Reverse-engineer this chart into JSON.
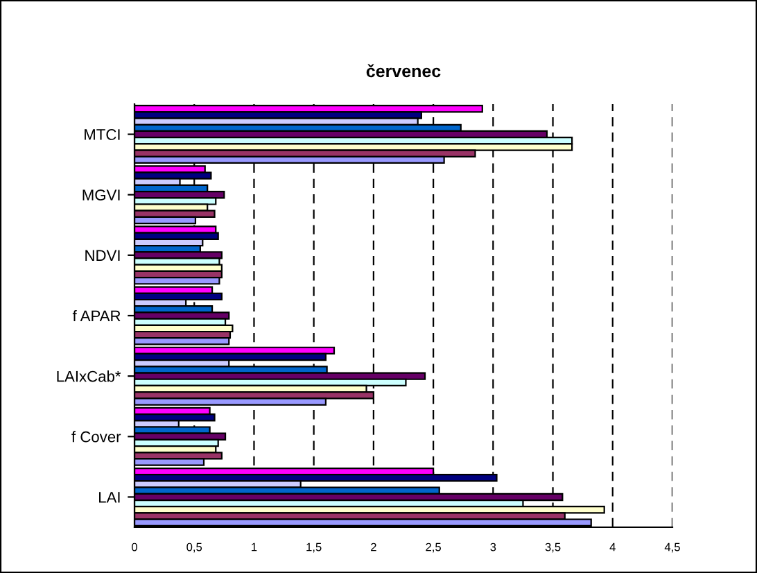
{
  "chart_data": {
    "type": "bar",
    "orientation": "horizontal",
    "title": "červenec",
    "categories": [
      "MTCI",
      "MGVI",
      "NDVI",
      "f APAR",
      "LAIxCab*",
      "f Cover",
      "LAI"
    ],
    "series": [
      {
        "color": "#ff00ff",
        "values": [
          2.91,
          0.59,
          0.68,
          0.65,
          1.67,
          0.63,
          2.5
        ]
      },
      {
        "color": "#000080",
        "values": [
          2.4,
          0.64,
          0.7,
          0.73,
          1.6,
          0.67,
          3.03
        ]
      },
      {
        "color": "#ccccff",
        "values": [
          2.37,
          0.38,
          0.57,
          0.43,
          0.79,
          0.37,
          1.39
        ]
      },
      {
        "color": "#0066cc",
        "values": [
          2.73,
          0.61,
          0.55,
          0.65,
          1.61,
          0.63,
          2.55
        ]
      },
      {
        "color": "#660066",
        "values": [
          3.45,
          0.75,
          0.73,
          0.79,
          2.43,
          0.76,
          3.58
        ]
      },
      {
        "color": "#ccffff",
        "values": [
          3.66,
          0.68,
          0.71,
          0.76,
          2.27,
          0.7,
          3.25
        ]
      },
      {
        "color": "#ffffcc",
        "values": [
          3.66,
          0.61,
          0.73,
          0.82,
          1.94,
          0.68,
          3.93
        ]
      },
      {
        "color": "#993366",
        "values": [
          2.85,
          0.67,
          0.73,
          0.8,
          2.0,
          0.73,
          3.6
        ]
      },
      {
        "color": "#9999ff",
        "values": [
          2.59,
          0.51,
          0.71,
          0.79,
          1.6,
          0.58,
          3.82
        ]
      }
    ],
    "xlim": [
      0,
      4.5
    ],
    "xticks": [
      0,
      {
        "value": 0.5,
        "label": "0,5"
      },
      1,
      {
        "value": 1.5,
        "label": "1,5"
      },
      2,
      {
        "value": 2.5,
        "label": "2,5"
      },
      3,
      {
        "value": 3.5,
        "label": "3,5"
      },
      4,
      {
        "value": 4.5,
        "label": "4,5"
      }
    ],
    "grid": "x",
    "line_style": "dashed",
    "legend": false
  }
}
